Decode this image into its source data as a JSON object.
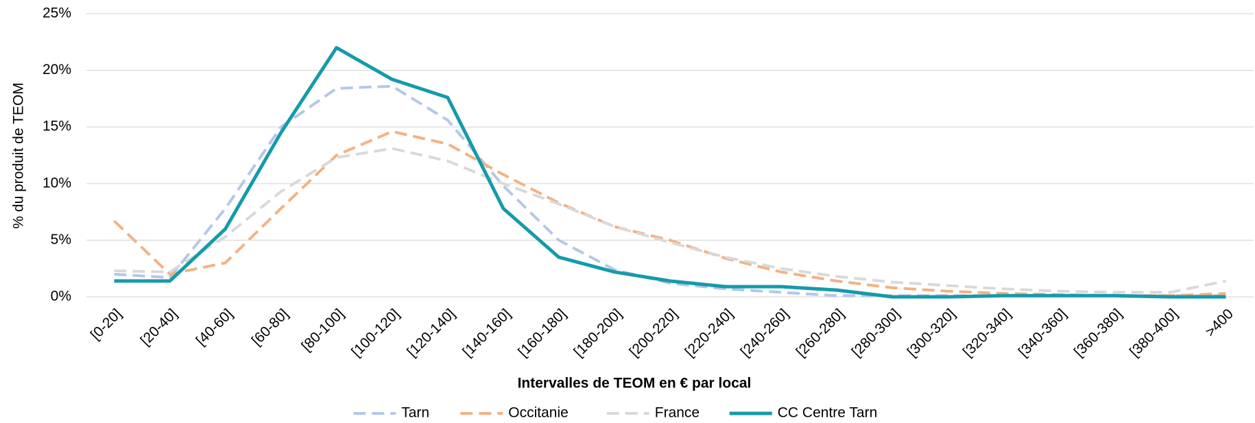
{
  "chart_data": {
    "type": "line",
    "y_label": "% du produit de TEOM",
    "x_label": "Intervalles de TEOM en € par local",
    "categories": [
      "[0-20]",
      "[20-40]",
      "[40-60]",
      "[60-80]",
      "[80-100]",
      "[100-120]",
      "[120-140]",
      "[140-160]",
      "[160-180]",
      "[180-200]",
      "[200-220]",
      "[220-240]",
      "[240-260]",
      "[260-280]",
      "[280-300]",
      "[300-320]",
      "[320-340]",
      "[340-360]",
      "[360-380]",
      "[380-400]",
      ">400"
    ],
    "series": [
      {
        "name": "Tarn",
        "color": "#b4c7e7",
        "dashed": true,
        "values": [
          2.0,
          1.7,
          7.8,
          15.0,
          18.4,
          18.6,
          15.6,
          9.8,
          5.0,
          2.4,
          1.2,
          0.7,
          0.4,
          0.1,
          0.1,
          0.1,
          0.1,
          0.1,
          0.1,
          0.1,
          0.1
        ]
      },
      {
        "name": "Occitanie",
        "color": "#f4b183",
        "dashed": true,
        "values": [
          6.7,
          2.0,
          3.0,
          7.8,
          12.5,
          14.6,
          13.5,
          10.8,
          8.3,
          6.2,
          5.0,
          3.4,
          2.2,
          1.4,
          0.8,
          0.5,
          0.3,
          0.2,
          0.1,
          0.1,
          0.3
        ]
      },
      {
        "name": "France",
        "color": "#d9d9d9",
        "dashed": true,
        "values": [
          2.3,
          2.2,
          5.3,
          9.3,
          12.3,
          13.1,
          12.0,
          10.0,
          8.2,
          6.2,
          4.8,
          3.5,
          2.5,
          1.8,
          1.3,
          1.0,
          0.7,
          0.5,
          0.4,
          0.4,
          1.4
        ]
      },
      {
        "name": "CC Centre Tarn",
        "color": "#159aab",
        "dashed": false,
        "values": [
          1.4,
          1.4,
          6.0,
          14.5,
          22.0,
          19.2,
          17.6,
          7.8,
          3.5,
          2.2,
          1.4,
          0.9,
          0.9,
          0.6,
          0.0,
          0.0,
          0.1,
          0.1,
          0.1,
          0.0,
          0.0
        ]
      }
    ],
    "ylim": [
      0,
      25
    ],
    "yticks": [
      {
        "value": 0,
        "label": "0%"
      },
      {
        "value": 5,
        "label": "5%"
      },
      {
        "value": 10,
        "label": "10%"
      },
      {
        "value": 15,
        "label": "15%"
      },
      {
        "value": 20,
        "label": "20%"
      },
      {
        "value": 25,
        "label": "25%"
      }
    ],
    "grid": true,
    "legend": "bottom"
  }
}
